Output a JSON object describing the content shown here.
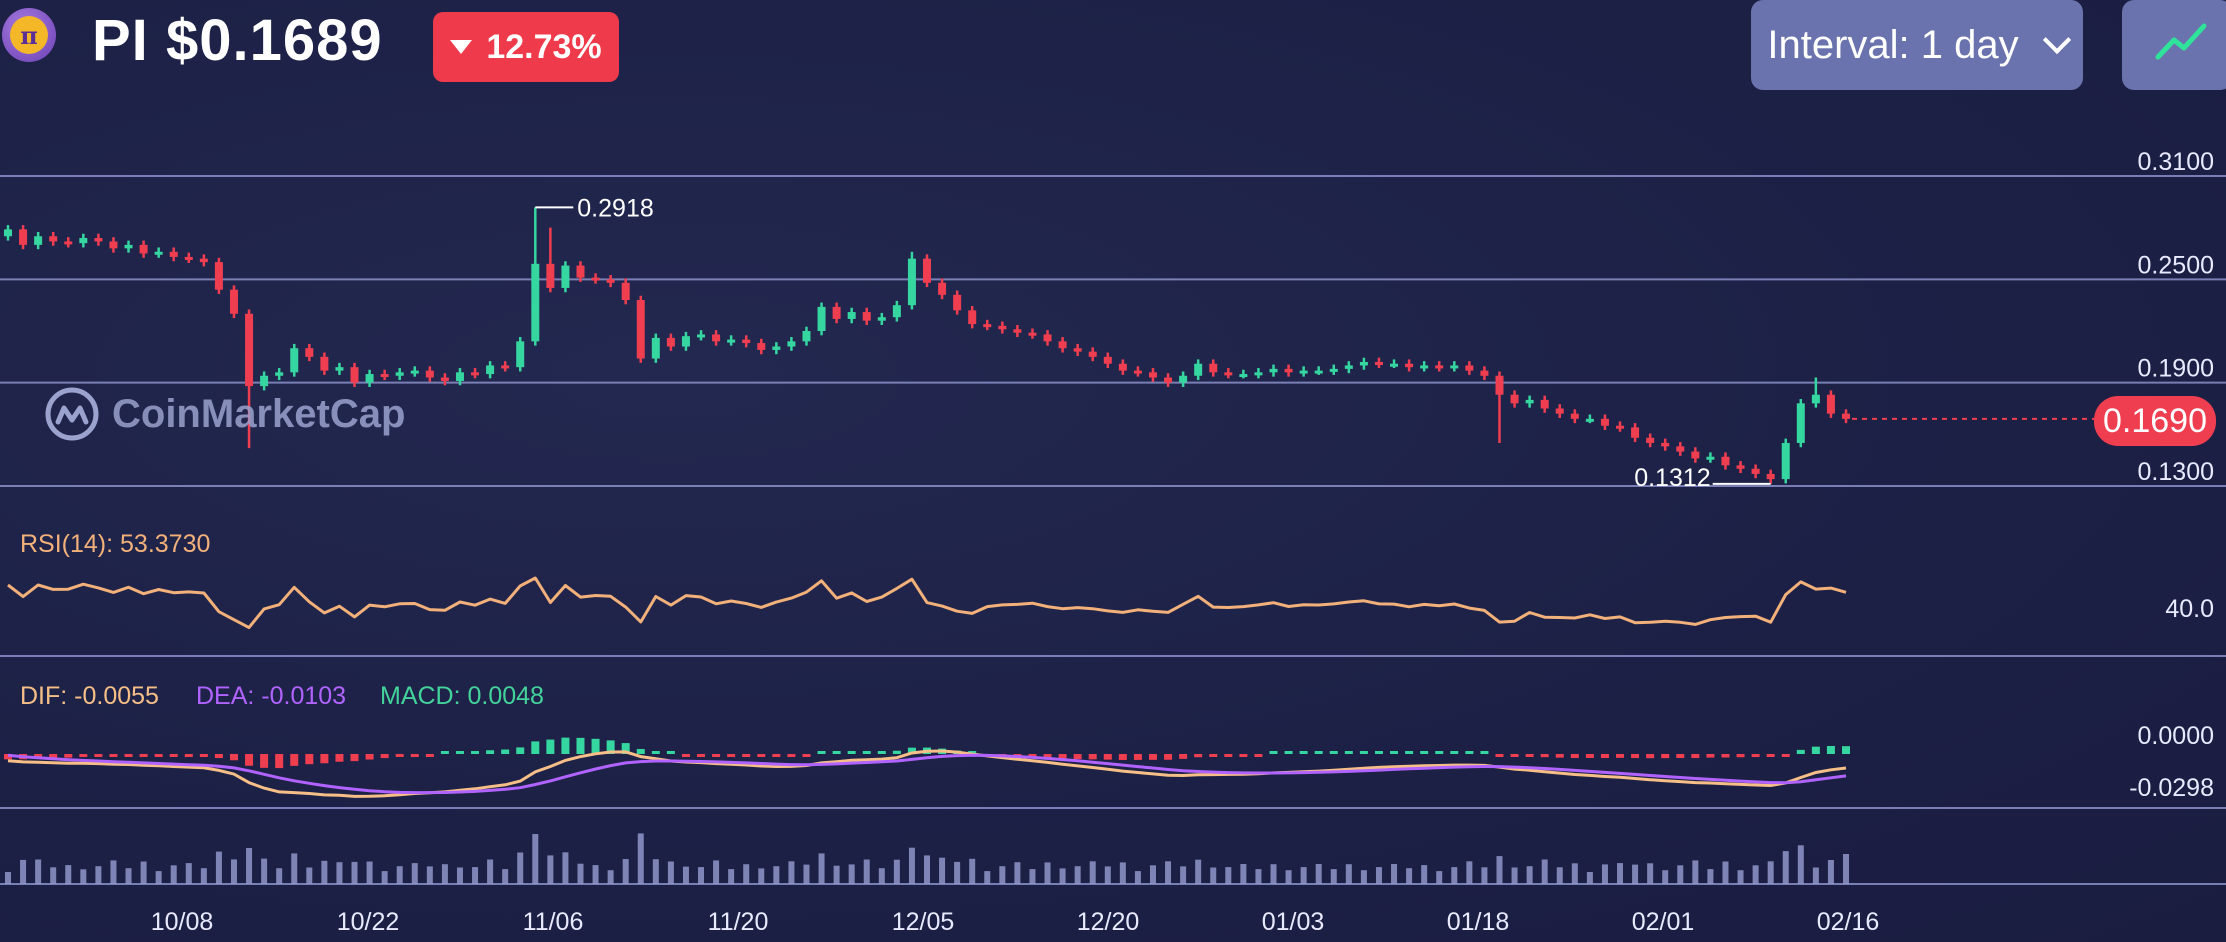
{
  "header": {
    "symbol": "PI",
    "price": "$0.1689",
    "change_percent": "12.73%",
    "change_direction": "down",
    "interval_label": "Interval: 1 day",
    "logo_icon": "pi-coin-logo-icon",
    "chart_type_icon": "line-chart-icon"
  },
  "watermark": "CoinMarketCap",
  "colors": {
    "background": "#1d2145",
    "up": "#35d6a0",
    "down": "#ef3e50",
    "rsi": "#f2b07a",
    "dif": "#f6bf88",
    "dea": "#b063ff",
    "macd_label": "#43d39a",
    "volume": "#8f96c9",
    "gridline": "#8a90c8"
  },
  "price_panel": {
    "y_ticks": [
      "0.3100",
      "0.2500",
      "0.1900",
      "0.1300"
    ],
    "last_price": "0.1690",
    "high_marker": "0.2918",
    "low_marker": "0.1312"
  },
  "rsi_panel": {
    "label": "RSI(14): 53.3730",
    "tick": "40.0"
  },
  "macd_panel": {
    "dif_label": "DIF: -0.0055",
    "dea_label": "DEA: -0.0103",
    "macd_label": "MACD: 0.0048",
    "ticks": [
      "0.0000",
      "-0.0298"
    ]
  },
  "x_axis": {
    "labels": [
      "10/08",
      "10/22",
      "11/06",
      "11/20",
      "12/05",
      "12/20",
      "01/03",
      "01/18",
      "02/01",
      "02/16"
    ]
  },
  "chart_data": {
    "type": "candlestick",
    "interval": "1 day",
    "x_labels": [
      "10/08",
      "10/22",
      "11/06",
      "11/20",
      "12/05",
      "12/20",
      "01/03",
      "01/18",
      "02/01",
      "02/16"
    ],
    "y_ticks": [
      0.31,
      0.25,
      0.19,
      0.13
    ],
    "ylim": [
      0.13,
      0.31
    ],
    "high": 0.2918,
    "low": 0.1312,
    "last": 0.169,
    "close_series": [
      0.279,
      0.27,
      0.275,
      0.272,
      0.271,
      0.274,
      0.272,
      0.268,
      0.27,
      0.265,
      0.266,
      0.263,
      0.262,
      0.26,
      0.244,
      0.23,
      0.188,
      0.194,
      0.196,
      0.21,
      0.205,
      0.197,
      0.199,
      0.19,
      0.195,
      0.194,
      0.196,
      0.197,
      0.193,
      0.191,
      0.196,
      0.195,
      0.2,
      0.199,
      0.214,
      0.259,
      0.245,
      0.258,
      0.251,
      0.25,
      0.248,
      0.238,
      0.204,
      0.216,
      0.211,
      0.217,
      0.218,
      0.214,
      0.215,
      0.213,
      0.209,
      0.211,
      0.214,
      0.22,
      0.234,
      0.227,
      0.231,
      0.226,
      0.228,
      0.235,
      0.262,
      0.248,
      0.241,
      0.232,
      0.224,
      0.223,
      0.221,
      0.219,
      0.218,
      0.214,
      0.21,
      0.208,
      0.205,
      0.201,
      0.197,
      0.196,
      0.193,
      0.19,
      0.194,
      0.201,
      0.196,
      0.195,
      0.195,
      0.196,
      0.198,
      0.196,
      0.197,
      0.197,
      0.198,
      0.2,
      0.202,
      0.201,
      0.201,
      0.199,
      0.2,
      0.199,
      0.2,
      0.197,
      0.194,
      0.183,
      0.178,
      0.18,
      0.175,
      0.172,
      0.169,
      0.169,
      0.165,
      0.164,
      0.158,
      0.155,
      0.153,
      0.15,
      0.146,
      0.147,
      0.142,
      0.14,
      0.137,
      0.134,
      0.155,
      0.178,
      0.183,
      0.172,
      0.169
    ],
    "rsi": {
      "label": "RSI(14)",
      "value": 53.373,
      "tick": 40.0
    },
    "macd": {
      "dif": -0.0055,
      "dea": -0.0103,
      "macd": 0.0048,
      "ticks": [
        0.0,
        -0.0298
      ]
    },
    "volume": {
      "shown": true
    }
  }
}
